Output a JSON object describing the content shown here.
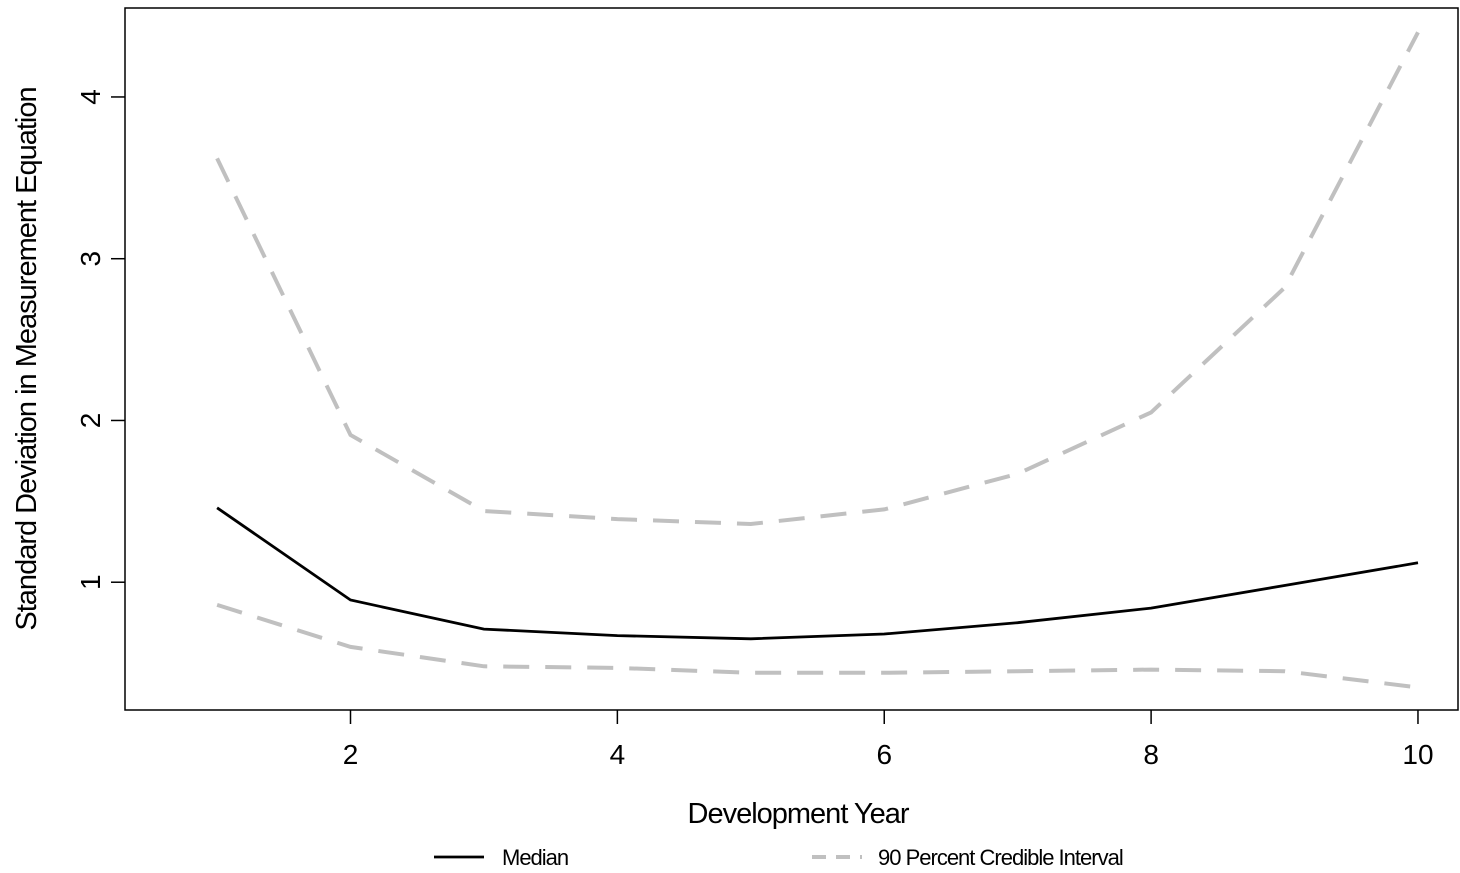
{
  "chart_data": {
    "type": "line",
    "title": "",
    "xlabel": "Development Year",
    "ylabel": "Standard Deviation in Measurement Equation",
    "x": [
      1,
      2,
      3,
      4,
      5,
      6,
      7,
      8,
      9,
      10
    ],
    "xlim": [
      0.31,
      10.3
    ],
    "ylim": [
      0.21,
      4.55
    ],
    "x_ticks": [
      2,
      4,
      6,
      8,
      10
    ],
    "y_ticks": [
      1,
      2,
      3,
      4
    ],
    "grid": false,
    "legend_position": "bottom",
    "series": [
      {
        "name": "Median",
        "style": "solid",
        "color": "#000000",
        "values": [
          1.46,
          0.89,
          0.71,
          0.67,
          0.65,
          0.68,
          0.75,
          0.84,
          0.98,
          1.12
        ]
      },
      {
        "name": "90 Percent Credible Interval",
        "style": "dashed",
        "color": "#c0c0c0",
        "values": [
          3.62,
          1.91,
          1.44,
          1.39,
          1.36,
          1.45,
          1.67,
          2.05,
          2.82,
          4.4
        ]
      },
      {
        "name": "90 Percent Credible Interval",
        "style": "dashed",
        "color": "#c0c0c0",
        "show_in_legend": false,
        "values": [
          0.86,
          0.6,
          0.48,
          0.47,
          0.44,
          0.44,
          0.45,
          0.46,
          0.45,
          0.35
        ]
      }
    ]
  }
}
